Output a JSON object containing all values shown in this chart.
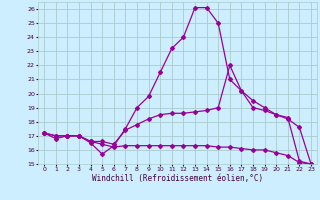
{
  "xlabel": "Windchill (Refroidissement éolien,°C)",
  "background_color": "#cceeff",
  "grid_color": "#aacccc",
  "line_color": "#990099",
  "xlim": [
    -0.5,
    23.5
  ],
  "ylim": [
    15,
    26.5
  ],
  "xticks": [
    0,
    1,
    2,
    3,
    4,
    5,
    6,
    7,
    8,
    9,
    10,
    11,
    12,
    13,
    14,
    15,
    16,
    17,
    18,
    19,
    20,
    21,
    22,
    23
  ],
  "yticks": [
    15,
    16,
    17,
    18,
    19,
    20,
    21,
    22,
    23,
    24,
    25,
    26
  ],
  "curve1_x": [
    0,
    1,
    2,
    3,
    4,
    5,
    6,
    7,
    8,
    9,
    10,
    11,
    12,
    13,
    14,
    15,
    16,
    17,
    18,
    19,
    20,
    21,
    22,
    23
  ],
  "curve1_y": [
    17.2,
    16.8,
    17.0,
    17.0,
    16.5,
    15.7,
    16.3,
    17.5,
    19.0,
    19.8,
    21.5,
    23.2,
    24.0,
    26.1,
    26.1,
    25.0,
    21.0,
    20.2,
    19.5,
    19.0,
    18.5,
    18.2,
    17.6,
    15.0
  ],
  "curve2_x": [
    0,
    1,
    2,
    3,
    4,
    5,
    6,
    7,
    8,
    9,
    10,
    11,
    12,
    13,
    14,
    15,
    16,
    17,
    18,
    19,
    20,
    21,
    22,
    23
  ],
  "curve2_y": [
    17.2,
    17.0,
    17.0,
    17.0,
    16.6,
    16.6,
    16.4,
    17.4,
    17.8,
    18.2,
    18.5,
    18.6,
    18.6,
    18.7,
    18.8,
    19.0,
    22.0,
    20.2,
    19.0,
    18.8,
    18.5,
    18.3,
    15.2,
    15.0
  ],
  "curve3_x": [
    0,
    1,
    2,
    3,
    4,
    5,
    6,
    7,
    8,
    9,
    10,
    11,
    12,
    13,
    14,
    15,
    16,
    17,
    18,
    19,
    20,
    21,
    22,
    23
  ],
  "curve3_y": [
    17.2,
    17.0,
    17.0,
    17.0,
    16.6,
    16.4,
    16.2,
    16.3,
    16.3,
    16.3,
    16.3,
    16.3,
    16.3,
    16.3,
    16.3,
    16.2,
    16.2,
    16.1,
    16.0,
    16.0,
    15.8,
    15.6,
    15.1,
    15.0
  ],
  "marker": "D",
  "markersize": 2.0,
  "linewidth": 0.9
}
